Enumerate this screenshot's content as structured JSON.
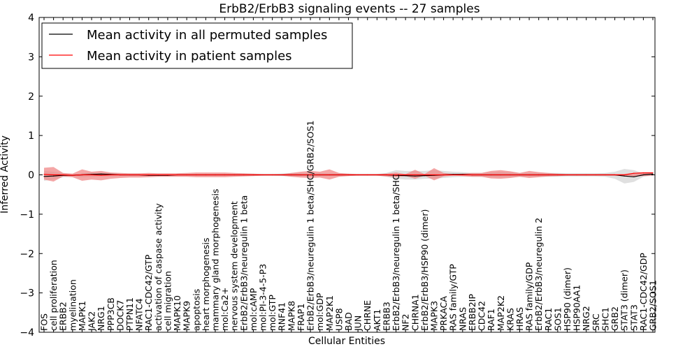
{
  "chart_data": {
    "type": "line",
    "title": "ErbB2/ErbB3 signaling events -- 27 samples",
    "xlabel": "Cellular Entities",
    "ylabel": "Inferred Activity",
    "ylim": [
      -4,
      4
    ],
    "yticks": [
      -4,
      -3,
      -2,
      -1,
      0,
      1,
      2,
      3,
      4
    ],
    "ytick_labels": [
      "−4",
      "−3",
      "−2",
      "−1",
      "0",
      "1",
      "2",
      "3",
      "4"
    ],
    "legend": {
      "position": "top-left",
      "entries": [
        {
          "label": "Mean activity in all permuted samples",
          "color": "#000000"
        },
        {
          "label": "Mean activity in patient samples",
          "color": "#ff0000"
        }
      ]
    },
    "categories": [
      "FOS",
      "cell proliferation",
      "ERBB2",
      "myelination",
      "MAPK1",
      "JAK2",
      "NRG1",
      "PPP3CB",
      "DOCK7",
      "PTPN11",
      "NFATC4",
      "RAC1-CDC42/GTP",
      "activation of caspase activity",
      "cell migration",
      "MAPK10",
      "MAPK9",
      "apoptosis",
      "heart morphogenesis",
      "mammary gland morphogenesis",
      "mol:Ca2+",
      "nervous system development",
      "ErbB2/ErbB3/neuregulin 1 beta",
      "mol:cAMP",
      "mol:PI-3-4-5-P3",
      "mol:GTP",
      "RNF41",
      "MAPK8",
      "FRAP1",
      "ErbB2/ErbB3/neuregulin 1 beta/SHC/GRB2/SOS1",
      "mol:GDP",
      "MAP2K1",
      "USP8",
      "BAD",
      "JUN",
      "CHRNE",
      "AKT1",
      "ERBB3",
      "ErbB2/ErbB3/neuregulin 1 beta/SHC",
      "NF2",
      "CHRNA1",
      "ErbB2/ErbB3/HSP90 (dimer)",
      "MAPK3",
      "PRKACA",
      "RAS family/GTP",
      "NRAS",
      "ERBB2IP",
      "CDC42",
      "RAF1",
      "MAP2K2",
      "KRAS",
      "HRAS",
      "RAS family/GDP",
      "ErbB2/ErbB3/neuregulin 2",
      "RAC1",
      "SOS1",
      "HSP90 (dimer)",
      "HSP90AA1",
      "NRG2",
      "SRC",
      "SHC1",
      "GRB2",
      "STAT3 (dimer)",
      "STAT3",
      "RAC1-CDC42/GDP",
      "GRB2/SOS1"
    ],
    "series": [
      {
        "name": "Mean activity in all permuted samples",
        "color": "#000000",
        "values": [
          -0.04,
          -0.03,
          -0.01,
          -0.01,
          0.0,
          0.01,
          0.02,
          0.01,
          0.0,
          0.0,
          0.0,
          -0.01,
          -0.01,
          -0.01,
          0.0,
          0.0,
          0.0,
          0.0,
          0.0,
          0.0,
          0.0,
          0.0,
          0.0,
          0.0,
          0.0,
          0.0,
          0.0,
          0.0,
          0.0,
          0.0,
          0.0,
          0.0,
          0.0,
          0.0,
          0.0,
          0.0,
          0.0,
          -0.01,
          -0.02,
          -0.03,
          -0.02,
          -0.01,
          0.0,
          0.01,
          0.01,
          0.0,
          0.0,
          0.0,
          0.0,
          0.0,
          0.0,
          0.0,
          0.0,
          0.0,
          0.0,
          0.0,
          0.0,
          0.0,
          0.0,
          0.0,
          0.0,
          -0.03,
          -0.05,
          0.0,
          0.02
        ]
      },
      {
        "name": "Mean activity in patient samples",
        "color": "#ff0000",
        "values": [
          0.01,
          0.0,
          0.0,
          -0.01,
          0.0,
          0.0,
          -0.01,
          0.0,
          0.0,
          0.0,
          0.0,
          0.0,
          0.0,
          0.0,
          0.0,
          0.0,
          0.0,
          0.0,
          0.0,
          0.0,
          0.0,
          0.0,
          0.0,
          0.0,
          0.0,
          0.0,
          0.0,
          0.0,
          0.0,
          0.0,
          0.0,
          0.0,
          0.0,
          0.0,
          0.0,
          0.0,
          0.0,
          0.0,
          0.0,
          0.0,
          0.0,
          0.0,
          0.0,
          0.0,
          0.0,
          0.0,
          0.0,
          0.0,
          0.0,
          0.0,
          0.0,
          0.0,
          0.0,
          0.0,
          0.0,
          0.0,
          0.0,
          0.0,
          0.0,
          0.0,
          0.0,
          0.0,
          0.04,
          0.05,
          0.05
        ]
      }
    ],
    "bands": [
      {
        "name": "permuted spread",
        "color": "#cccccc",
        "upper": [
          0.1,
          0.08,
          0.04,
          0.02,
          0.04,
          0.06,
          0.05,
          0.04,
          0.03,
          0.02,
          0.02,
          0.02,
          0.02,
          0.02,
          0.02,
          0.02,
          0.02,
          0.02,
          0.02,
          0.02,
          0.02,
          0.02,
          0.02,
          0.02,
          0.02,
          0.03,
          0.05,
          0.04,
          0.04,
          0.04,
          0.03,
          0.03,
          0.02,
          0.02,
          0.02,
          0.02,
          0.05,
          0.12,
          0.1,
          0.1,
          0.1,
          0.12,
          0.1,
          0.08,
          0.07,
          0.05,
          0.05,
          0.07,
          0.08,
          0.07,
          0.05,
          0.05,
          0.05,
          0.05,
          0.05,
          0.04,
          0.04,
          0.04,
          0.04,
          0.05,
          0.08,
          0.15,
          0.12,
          0.04,
          0.04
        ],
        "lower": [
          -0.15,
          -0.12,
          -0.06,
          -0.05,
          -0.06,
          -0.05,
          -0.04,
          -0.04,
          -0.03,
          -0.03,
          -0.03,
          -0.03,
          -0.03,
          -0.02,
          -0.02,
          -0.02,
          -0.02,
          -0.02,
          -0.02,
          -0.02,
          -0.02,
          -0.02,
          -0.02,
          -0.02,
          -0.02,
          -0.03,
          -0.04,
          -0.04,
          -0.04,
          -0.04,
          -0.03,
          -0.03,
          -0.02,
          -0.02,
          -0.02,
          -0.02,
          -0.05,
          -0.1,
          -0.12,
          -0.12,
          -0.1,
          -0.1,
          -0.08,
          -0.06,
          -0.05,
          -0.05,
          -0.05,
          -0.06,
          -0.07,
          -0.06,
          -0.05,
          -0.05,
          -0.05,
          -0.05,
          -0.05,
          -0.04,
          -0.04,
          -0.04,
          -0.04,
          -0.05,
          -0.1,
          -0.22,
          -0.18,
          -0.05,
          -0.02
        ]
      },
      {
        "name": "patient spread",
        "color": "#f08080",
        "upper": [
          0.18,
          0.2,
          0.05,
          0.03,
          0.14,
          0.08,
          0.1,
          0.06,
          0.05,
          0.04,
          0.04,
          0.05,
          0.04,
          0.04,
          0.04,
          0.05,
          0.06,
          0.06,
          0.06,
          0.06,
          0.05,
          0.04,
          0.03,
          0.02,
          0.02,
          0.02,
          0.05,
          0.08,
          0.1,
          0.08,
          0.14,
          0.05,
          0.03,
          0.02,
          0.02,
          0.02,
          0.03,
          0.06,
          0.02,
          0.13,
          0.02,
          0.17,
          0.05,
          0.02,
          0.03,
          0.05,
          0.05,
          0.1,
          0.12,
          0.09,
          0.05,
          0.1,
          0.07,
          0.05,
          0.03,
          0.02,
          0.02,
          0.02,
          0.02,
          0.02,
          0.02,
          0.02,
          0.05,
          0.07,
          0.07
        ],
        "lower": [
          -0.12,
          -0.17,
          -0.04,
          -0.06,
          -0.15,
          -0.12,
          -0.14,
          -0.1,
          -0.08,
          -0.07,
          -0.07,
          -0.06,
          -0.05,
          -0.05,
          -0.05,
          -0.05,
          -0.06,
          -0.06,
          -0.06,
          -0.06,
          -0.05,
          -0.04,
          -0.03,
          -0.02,
          -0.02,
          -0.02,
          -0.05,
          -0.07,
          -0.08,
          -0.07,
          -0.12,
          -0.05,
          -0.03,
          -0.02,
          -0.02,
          -0.02,
          -0.04,
          -0.06,
          -0.03,
          -0.1,
          -0.02,
          -0.14,
          -0.04,
          -0.02,
          -0.03,
          -0.05,
          -0.05,
          -0.09,
          -0.1,
          -0.08,
          -0.05,
          -0.08,
          -0.06,
          -0.04,
          -0.03,
          -0.02,
          -0.02,
          -0.02,
          -0.02,
          -0.02,
          -0.02,
          -0.02,
          -0.04,
          -0.03,
          -0.02
        ]
      }
    ]
  }
}
